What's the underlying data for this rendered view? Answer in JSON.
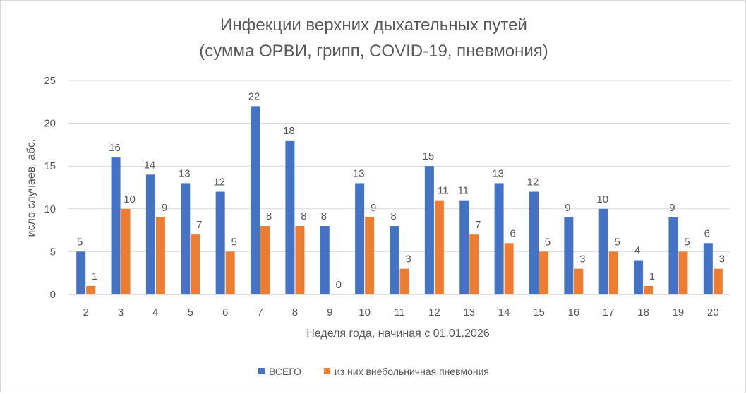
{
  "chart_data": {
    "type": "bar",
    "title_line1": "Инфекции верхних дыхательных путей",
    "title_line2": "(сумма ОРВИ, грипп, COVID-19, пневмония)",
    "xlabel": "Неделя года, начиная с 01.01.2026",
    "ylabel": "исло случаев, абс.",
    "ylim": [
      0,
      25
    ],
    "yticks": [
      0,
      5,
      10,
      15,
      20,
      25
    ],
    "grid": true,
    "legend_position": "bottom",
    "categories": [
      "2",
      "3",
      "4",
      "5",
      "6",
      "7",
      "8",
      "9",
      "10",
      "11",
      "12",
      "13",
      "14",
      "15",
      "16",
      "17",
      "18",
      "19",
      "20"
    ],
    "series": [
      {
        "name": "ВСЕГО",
        "color": "#4472c4",
        "values": [
          5,
          16,
          14,
          13,
          12,
          22,
          18,
          8,
          13,
          8,
          15,
          11,
          13,
          12,
          9,
          10,
          4,
          9,
          6
        ]
      },
      {
        "name": "из них внебольничная пневмония",
        "color": "#ed7d31",
        "values": [
          1,
          10,
          9,
          7,
          5,
          8,
          8,
          0,
          9,
          3,
          11,
          7,
          6,
          5,
          3,
          5,
          1,
          5,
          3
        ]
      }
    ]
  }
}
